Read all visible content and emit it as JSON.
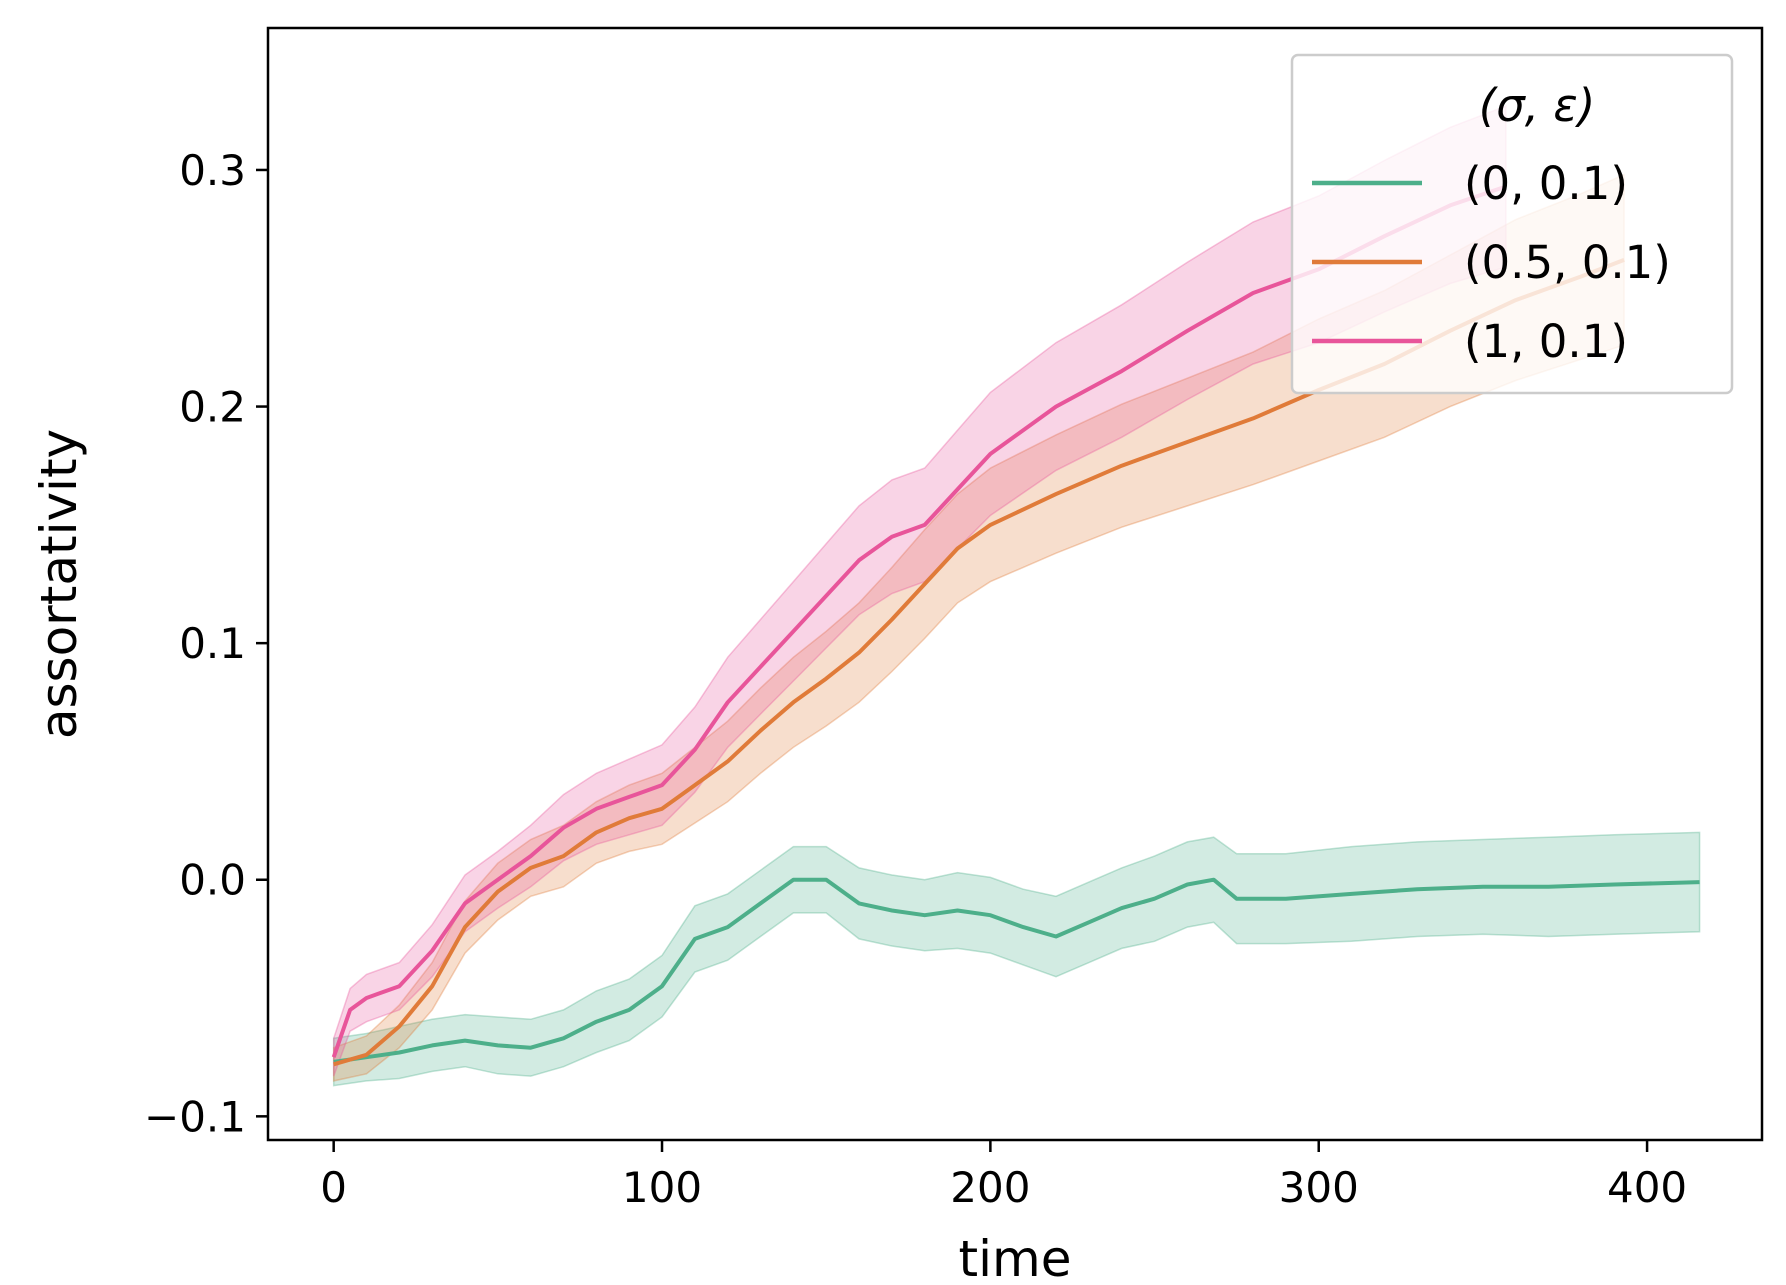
{
  "chart_data": {
    "type": "line",
    "xlabel": "time",
    "ylabel": "assortativity",
    "xlim": [
      -20,
      435
    ],
    "ylim": [
      -0.11,
      0.36
    ],
    "xticks": [
      0,
      100,
      200,
      300,
      400
    ],
    "yticks": [
      -0.1,
      0.0,
      0.1,
      0.2,
      0.3
    ],
    "ytick_labels": [
      "−0.1",
      "0.0",
      "0.1",
      "0.2",
      "0.3"
    ],
    "grid": false,
    "legend": {
      "title": "(σ, ε)",
      "position": "top-right"
    },
    "series": [
      {
        "name": "(0, 0.1)",
        "color": "#4daf8a",
        "x": [
          0,
          10,
          20,
          30,
          40,
          50,
          60,
          70,
          80,
          90,
          100,
          110,
          120,
          130,
          140,
          150,
          160,
          170,
          180,
          190,
          200,
          210,
          220,
          230,
          240,
          250,
          260,
          268,
          275,
          290,
          310,
          330,
          350,
          370,
          390,
          416
        ],
        "y": [
          -0.077,
          -0.075,
          -0.073,
          -0.07,
          -0.068,
          -0.07,
          -0.071,
          -0.067,
          -0.06,
          -0.055,
          -0.045,
          -0.025,
          -0.02,
          -0.01,
          0.0,
          0.0,
          -0.01,
          -0.013,
          -0.015,
          -0.013,
          -0.015,
          -0.02,
          -0.024,
          -0.018,
          -0.012,
          -0.008,
          -0.002,
          0.0,
          -0.008,
          -0.008,
          -0.006,
          -0.004,
          -0.003,
          -0.003,
          -0.002,
          -0.001
        ],
        "band": [
          0.01,
          0.01,
          0.011,
          0.011,
          0.011,
          0.012,
          0.012,
          0.012,
          0.013,
          0.013,
          0.013,
          0.014,
          0.014,
          0.014,
          0.014,
          0.014,
          0.015,
          0.015,
          0.015,
          0.016,
          0.016,
          0.016,
          0.017,
          0.017,
          0.017,
          0.018,
          0.018,
          0.018,
          0.019,
          0.019,
          0.02,
          0.02,
          0.02,
          0.021,
          0.021,
          0.021
        ]
      },
      {
        "name": "(0.5, 0.1)",
        "color": "#e07b39",
        "x": [
          0,
          10,
          20,
          30,
          40,
          50,
          60,
          70,
          80,
          90,
          100,
          110,
          120,
          130,
          140,
          150,
          160,
          170,
          180,
          190,
          200,
          220,
          240,
          260,
          280,
          300,
          320,
          340,
          360,
          380,
          393
        ],
        "y": [
          -0.078,
          -0.074,
          -0.062,
          -0.045,
          -0.02,
          -0.005,
          0.005,
          0.01,
          0.02,
          0.026,
          0.03,
          0.04,
          0.05,
          0.063,
          0.075,
          0.085,
          0.096,
          0.11,
          0.125,
          0.14,
          0.15,
          0.163,
          0.175,
          0.185,
          0.195,
          0.207,
          0.218,
          0.232,
          0.245,
          0.255,
          0.262
        ],
        "band": [
          0.007,
          0.008,
          0.009,
          0.01,
          0.011,
          0.012,
          0.012,
          0.013,
          0.013,
          0.014,
          0.015,
          0.016,
          0.017,
          0.018,
          0.019,
          0.02,
          0.021,
          0.022,
          0.023,
          0.023,
          0.024,
          0.025,
          0.026,
          0.027,
          0.028,
          0.03,
          0.031,
          0.032,
          0.034,
          0.035,
          0.036
        ]
      },
      {
        "name": "(1, 0.1)",
        "color": "#e8559a",
        "x": [
          0,
          5,
          10,
          20,
          30,
          40,
          50,
          60,
          70,
          80,
          90,
          100,
          110,
          120,
          130,
          140,
          150,
          160,
          170,
          180,
          190,
          200,
          220,
          240,
          260,
          280,
          300,
          320,
          340,
          357
        ],
        "y": [
          -0.075,
          -0.055,
          -0.05,
          -0.045,
          -0.03,
          -0.01,
          0.0,
          0.01,
          0.022,
          0.03,
          0.035,
          0.04,
          0.055,
          0.075,
          0.09,
          0.105,
          0.12,
          0.135,
          0.145,
          0.15,
          0.165,
          0.18,
          0.2,
          0.215,
          0.232,
          0.248,
          0.258,
          0.272,
          0.285,
          0.293
        ],
        "band": [
          0.008,
          0.009,
          0.01,
          0.01,
          0.011,
          0.012,
          0.012,
          0.013,
          0.014,
          0.015,
          0.016,
          0.017,
          0.018,
          0.019,
          0.02,
          0.021,
          0.022,
          0.023,
          0.024,
          0.024,
          0.025,
          0.026,
          0.027,
          0.028,
          0.029,
          0.03,
          0.031,
          0.032,
          0.033,
          0.034
        ]
      }
    ]
  }
}
